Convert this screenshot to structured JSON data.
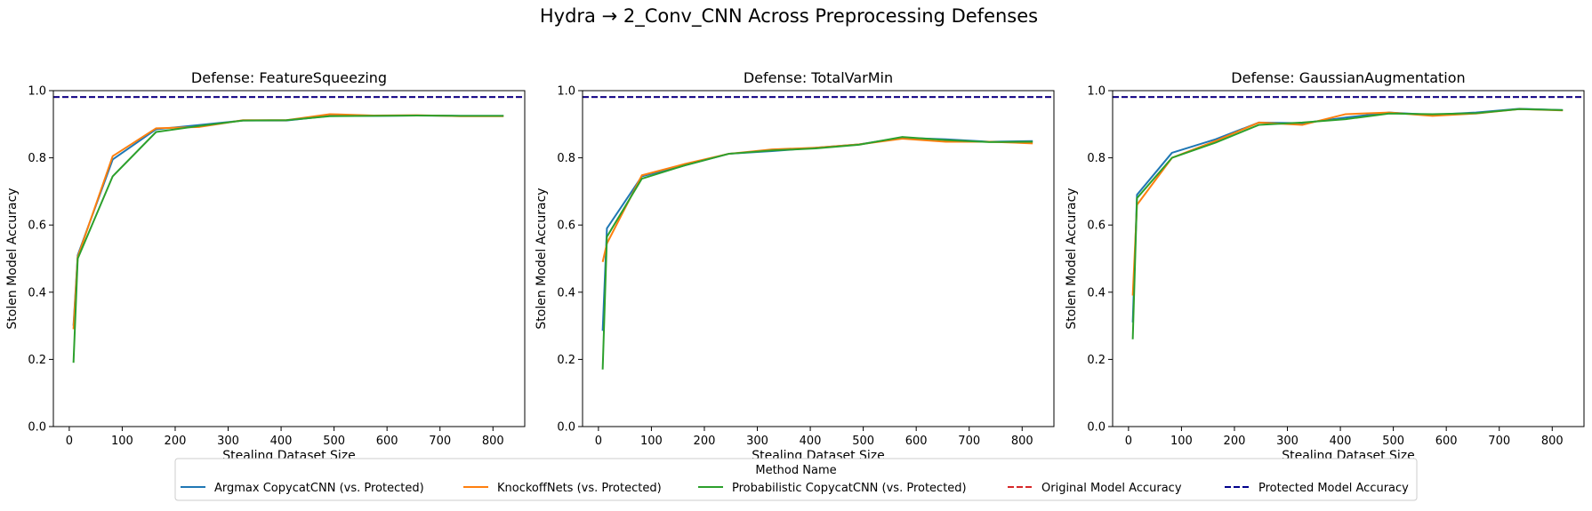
{
  "figure": {
    "suptitle": "Hydra → 2_Conv_CNN Across Preprocessing Defenses"
  },
  "legend": {
    "title": "Method Name",
    "placement": "bottom-center",
    "entries": [
      {
        "label": "Argmax CopycatCNN (vs. Protected)",
        "color": "#1f77b4",
        "dash": "solid"
      },
      {
        "label": "KnockoffNets (vs. Protected)",
        "color": "#ff7f0e",
        "dash": "solid"
      },
      {
        "label": "Probabilistic CopycatCNN (vs. Protected)",
        "color": "#2ca02c",
        "dash": "solid"
      },
      {
        "label": "Original Model Accuracy",
        "color": "#d62728",
        "dash": "dashed"
      },
      {
        "label": "Protected Model Accuracy",
        "color": "#00008b",
        "dash": "dashed"
      }
    ]
  },
  "chart_data": [
    {
      "type": "line",
      "title": "Defense: FeatureSqueezing",
      "xlabel": "Stealing Dataset Size",
      "ylabel": "Stolen Model Accuracy",
      "xlim": [
        -30,
        860
      ],
      "ylim": [
        0,
        1.0
      ],
      "xticks": [
        0,
        100,
        200,
        300,
        400,
        500,
        600,
        700,
        800
      ],
      "yticks": [
        0.0,
        0.2,
        0.4,
        0.6,
        0.8,
        1.0
      ],
      "grid": false,
      "hlines": [
        {
          "name": "Original Model Accuracy",
          "y": 0.981,
          "color": "#d62728"
        },
        {
          "name": "Protected Model Accuracy",
          "y": 0.981,
          "color": "#00008b"
        }
      ],
      "series": [
        {
          "name": "Argmax CopycatCNN (vs. Protected)",
          "color": "#1f77b4",
          "x": [
            8,
            16,
            82,
            164,
            246,
            328,
            410,
            492,
            574,
            656,
            738,
            820
          ],
          "y": [
            0.3,
            0.51,
            0.795,
            0.885,
            0.898,
            0.911,
            0.911,
            0.925,
            0.925,
            0.926,
            0.925,
            0.925
          ]
        },
        {
          "name": "KnockoffNets (vs. Protected)",
          "color": "#ff7f0e",
          "x": [
            8,
            16,
            82,
            164,
            246,
            328,
            410,
            492,
            574,
            656,
            738,
            820
          ],
          "y": [
            0.29,
            0.505,
            0.805,
            0.888,
            0.892,
            0.912,
            0.912,
            0.93,
            0.926,
            0.927,
            0.924,
            0.924
          ]
        },
        {
          "name": "Probabilistic CopycatCNN (vs. Protected)",
          "color": "#2ca02c",
          "x": [
            8,
            16,
            82,
            164,
            246,
            328,
            410,
            492,
            574,
            656,
            738,
            820
          ],
          "y": [
            0.19,
            0.5,
            0.745,
            0.877,
            0.895,
            0.911,
            0.912,
            0.924,
            0.925,
            0.926,
            0.925,
            0.925
          ]
        }
      ]
    },
    {
      "type": "line",
      "title": "Defense: TotalVarMin",
      "xlabel": "Stealing Dataset Size",
      "ylabel": "Stolen Model Accuracy",
      "xlim": [
        -30,
        860
      ],
      "ylim": [
        0,
        1.0
      ],
      "xticks": [
        0,
        100,
        200,
        300,
        400,
        500,
        600,
        700,
        800
      ],
      "yticks": [
        0.0,
        0.2,
        0.4,
        0.6,
        0.8,
        1.0
      ],
      "grid": false,
      "hlines": [
        {
          "name": "Original Model Accuracy",
          "y": 0.981,
          "color": "#d62728"
        },
        {
          "name": "Protected Model Accuracy",
          "y": 0.981,
          "color": "#00008b"
        }
      ],
      "series": [
        {
          "name": "Argmax CopycatCNN (vs. Protected)",
          "color": "#1f77b4",
          "x": [
            8,
            16,
            82,
            164,
            246,
            328,
            410,
            492,
            574,
            656,
            738,
            820
          ],
          "y": [
            0.285,
            0.59,
            0.745,
            0.778,
            0.812,
            0.82,
            0.83,
            0.84,
            0.86,
            0.855,
            0.848,
            0.85
          ]
        },
        {
          "name": "KnockoffNets (vs. Protected)",
          "color": "#ff7f0e",
          "x": [
            8,
            16,
            82,
            164,
            246,
            328,
            410,
            492,
            574,
            656,
            738,
            820
          ],
          "y": [
            0.49,
            0.545,
            0.748,
            0.782,
            0.812,
            0.825,
            0.83,
            0.84,
            0.857,
            0.848,
            0.848,
            0.843
          ]
        },
        {
          "name": "Probabilistic CopycatCNN (vs. Protected)",
          "color": "#2ca02c",
          "x": [
            8,
            16,
            82,
            164,
            246,
            328,
            410,
            492,
            574,
            656,
            738,
            820
          ],
          "y": [
            0.17,
            0.565,
            0.738,
            0.778,
            0.812,
            0.822,
            0.828,
            0.839,
            0.862,
            0.853,
            0.847,
            0.848
          ]
        }
      ]
    },
    {
      "type": "line",
      "title": "Defense: GaussianAugmentation",
      "xlabel": "Stealing Dataset Size",
      "ylabel": "Stolen Model Accuracy",
      "xlim": [
        -30,
        860
      ],
      "ylim": [
        0,
        1.0
      ],
      "xticks": [
        0,
        100,
        200,
        300,
        400,
        500,
        600,
        700,
        800
      ],
      "yticks": [
        0.0,
        0.2,
        0.4,
        0.6,
        0.8,
        1.0
      ],
      "grid": false,
      "hlines": [
        {
          "name": "Original Model Accuracy",
          "y": 0.981,
          "color": "#d62728"
        },
        {
          "name": "Protected Model Accuracy",
          "y": 0.981,
          "color": "#00008b"
        }
      ],
      "series": [
        {
          "name": "Argmax CopycatCNN (vs. Protected)",
          "color": "#1f77b4",
          "x": [
            8,
            16,
            82,
            164,
            246,
            328,
            410,
            492,
            574,
            656,
            738,
            820
          ],
          "y": [
            0.31,
            0.69,
            0.815,
            0.855,
            0.905,
            0.903,
            0.92,
            0.935,
            0.928,
            0.935,
            0.946,
            0.942
          ]
        },
        {
          "name": "KnockoffNets (vs. Protected)",
          "color": "#ff7f0e",
          "x": [
            8,
            16,
            82,
            164,
            246,
            328,
            410,
            492,
            574,
            656,
            738,
            820
          ],
          "y": [
            0.39,
            0.66,
            0.8,
            0.85,
            0.905,
            0.898,
            0.93,
            0.935,
            0.925,
            0.932,
            0.945,
            0.941
          ]
        },
        {
          "name": "Probabilistic CopycatCNN (vs. Protected)",
          "color": "#2ca02c",
          "x": [
            8,
            16,
            82,
            164,
            246,
            328,
            410,
            492,
            574,
            656,
            738,
            820
          ],
          "y": [
            0.26,
            0.68,
            0.8,
            0.845,
            0.898,
            0.905,
            0.915,
            0.932,
            0.93,
            0.933,
            0.945,
            0.942
          ]
        }
      ]
    }
  ]
}
